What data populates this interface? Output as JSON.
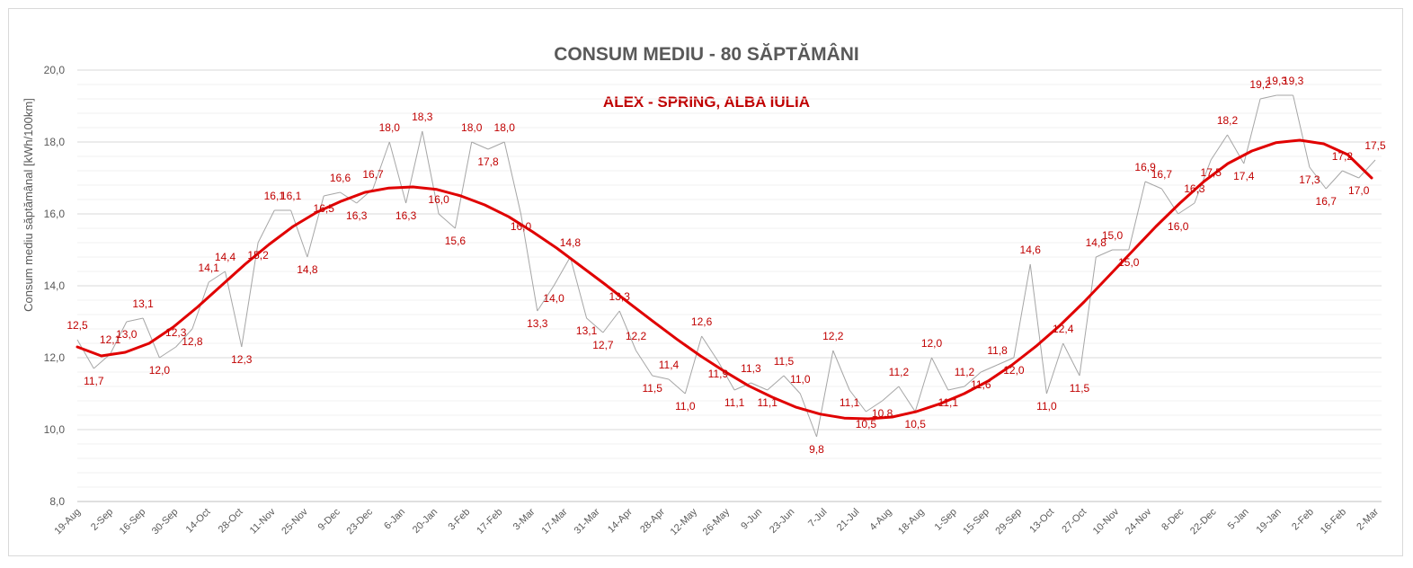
{
  "chart_data": {
    "type": "line",
    "title": "CONSUM MEDIU - 80 SĂPTĂMÂNI",
    "subtitle": "ALEX - SPRING, ALBA IULIA",
    "ylabel": "Consum mediu săptămânal [kWh/100km]",
    "xlabel": "",
    "ylim": [
      8,
      20
    ],
    "y_ticks": [
      "8,0",
      "10,0",
      "12,0",
      "14,0",
      "16,0",
      "18,0",
      "20,0"
    ],
    "grid": true,
    "legend": "none",
    "x_tick_labels": [
      "19-Aug",
      "2-Sep",
      "16-Sep",
      "30-Sep",
      "14-Oct",
      "28-Oct",
      "11-Nov",
      "25-Nov",
      "9-Dec",
      "23-Dec",
      "6-Jan",
      "20-Jan",
      "3-Feb",
      "17-Feb",
      "3-Mar",
      "17-Mar",
      "31-Mar",
      "14-Apr",
      "28-Apr",
      "12-May",
      "26-May",
      "9-Jun",
      "23-Jun",
      "7-Jul",
      "21-Jul",
      "4-Aug",
      "18-Aug",
      "1-Sep",
      "15-Sep",
      "29-Sep",
      "13-Oct",
      "27-Oct",
      "10-Nov",
      "24-Nov",
      "8-Dec",
      "22-Dec",
      "5-Jan",
      "19-Jan",
      "2-Feb",
      "16-Feb",
      "2-Mar"
    ],
    "series": [
      {
        "values": [
          12.5,
          11.7,
          12.1,
          13.0,
          13.1,
          12.0,
          12.3,
          12.8,
          14.1,
          14.4,
          12.3,
          15.2,
          16.1,
          16.1,
          14.8,
          16.5,
          16.6,
          16.3,
          16.7,
          18.0,
          16.3,
          18.3,
          16.0,
          15.6,
          18.0,
          17.8,
          18.0,
          16.0,
          13.3,
          14.0,
          14.8,
          13.1,
          12.7,
          13.3,
          12.2,
          11.5,
          11.4,
          11.0,
          12.6,
          11.9,
          11.1,
          11.3,
          11.1,
          11.5,
          11.0,
          9.8,
          12.2,
          11.1,
          10.5,
          10.8,
          11.2,
          10.5,
          12.0,
          11.1,
          11.2,
          11.6,
          11.8,
          12.0,
          14.6,
          11.0,
          12.4,
          11.5,
          14.8,
          15.0,
          15.0,
          16.9,
          16.7,
          16.0,
          16.3,
          17.5,
          18.2,
          17.4,
          19.2,
          19.3,
          19.3,
          17.3,
          16.7,
          17.2,
          17.0,
          17.5
        ],
        "labels": [
          "12,5",
          "11,7",
          "12,1",
          "13,0",
          "13,1",
          "12,0",
          "12,3",
          "12,8",
          "14,1",
          "14,4",
          "12,3",
          "15,2",
          "16,1",
          "16,1",
          "14,8",
          "16,5",
          "16,6",
          "16,3",
          "16,7",
          "18,0",
          "16,3",
          "18,3",
          "16,0",
          "15,6",
          "18,0",
          "17,8",
          "18,0",
          "16,0",
          "13,3",
          "14,0",
          "14,8",
          "13,1",
          "12,7",
          "13,3",
          "12,2",
          "11,5",
          "11,4",
          "11,0",
          "12,6",
          "11,9",
          "11,1",
          "11,3",
          "11,1",
          "11,5",
          "11,0",
          "9,8",
          "12,2",
          "11,1",
          "10,5",
          "10,8",
          "11,2",
          "10,5",
          "12,0",
          "11,1",
          "11,2",
          "11,6",
          "11,8",
          "12,0",
          "14,6",
          "11,0",
          "12,4",
          "11,5",
          "14,8",
          "15,0",
          "15,0",
          "16,9",
          "16,7",
          "16,0",
          "16,3",
          "17,5",
          "18,2",
          "17,4",
          "19,2",
          "19,3",
          "19,3",
          "17,3",
          "16,7",
          "17,2",
          "17,0",
          "17,5"
        ],
        "color": "#a6a6a6"
      },
      {
        "kind": "trendline",
        "color": "#e00000",
        "values": [
          12.3,
          12.05,
          12.15,
          12.4,
          12.85,
          13.4,
          14.0,
          14.6,
          15.15,
          15.65,
          16.05,
          16.35,
          16.6,
          16.72,
          16.75,
          16.68,
          16.5,
          16.25,
          15.92,
          15.5,
          15.05,
          14.55,
          14.05,
          13.53,
          13.02,
          12.52,
          12.05,
          11.62,
          11.22,
          10.9,
          10.62,
          10.43,
          10.32,
          10.3,
          10.35,
          10.5,
          10.72,
          11.0,
          11.35,
          11.8,
          12.32,
          12.9,
          13.55,
          14.25,
          14.95,
          15.65,
          16.3,
          16.9,
          17.4,
          17.75,
          17.98,
          18.05,
          17.95,
          17.65,
          17.0
        ]
      }
    ]
  }
}
